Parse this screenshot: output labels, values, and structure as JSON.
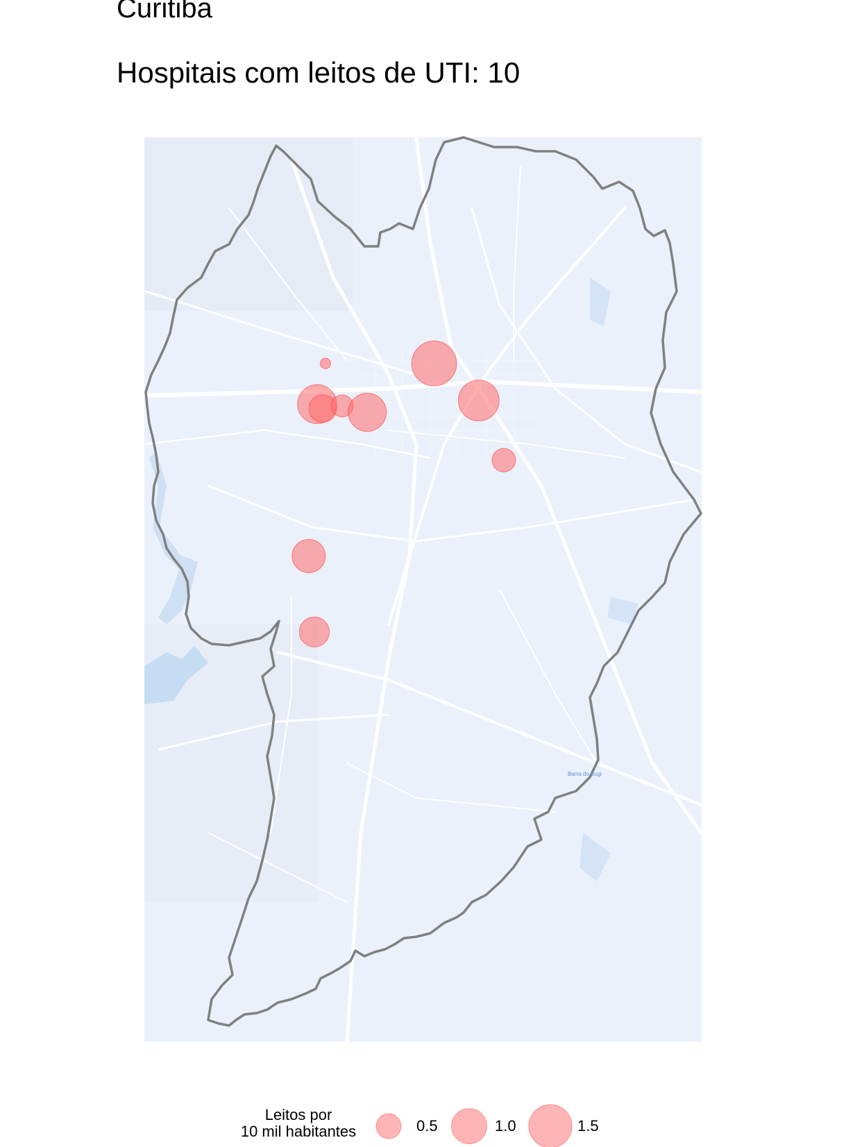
{
  "title": "Curitiba",
  "subtitle": "Hospitais com leitos de UTI: 10",
  "colors": {
    "map_bg": "#eaf1fa",
    "water": "#c6dcf3",
    "roads": "#ffffff",
    "boundary": "#808080",
    "bubble_fill": "#ff6b6b",
    "bubble_stroke": "#ff4040"
  },
  "map_label": "Barra do Bugi",
  "legend": {
    "title_line1": "Leitos por",
    "title_line2": "10 mil habitantes",
    "items": [
      {
        "label": "0.5",
        "value": 0.5
      },
      {
        "label": "1.0",
        "value": 1.0
      },
      {
        "label": "1.5",
        "value": 1.5
      }
    ]
  },
  "hospitals": [
    {
      "id": "h1",
      "leitos": 1.45,
      "lon": 0.52,
      "lat": 0.25
    },
    {
      "id": "h2",
      "leitos": 0.08,
      "lon": 0.325,
      "lat": 0.25
    },
    {
      "id": "h3",
      "leitos": 1.1,
      "lon": 0.31,
      "lat": 0.295
    },
    {
      "id": "h4",
      "leitos": 0.55,
      "lon": 0.32,
      "lat": 0.3
    },
    {
      "id": "h5",
      "leitos": 0.35,
      "lon": 0.355,
      "lat": 0.297
    },
    {
      "id": "h6",
      "leitos": 1.05,
      "lon": 0.4,
      "lat": 0.304
    },
    {
      "id": "h7",
      "leitos": 1.2,
      "lon": 0.6,
      "lat": 0.291
    },
    {
      "id": "h8",
      "leitos": 0.4,
      "lon": 0.645,
      "lat": 0.357
    },
    {
      "id": "h9",
      "leitos": 0.8,
      "lon": 0.295,
      "lat": 0.463
    },
    {
      "id": "h10",
      "leitos": 0.65,
      "lon": 0.305,
      "lat": 0.547
    }
  ]
}
